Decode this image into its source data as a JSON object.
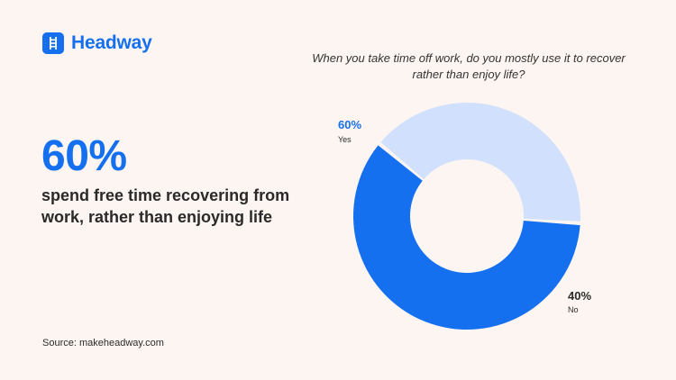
{
  "brand": {
    "name": "Headway",
    "icon": "ladder-icon",
    "color": "#1570EF"
  },
  "headline": {
    "stat": "60%",
    "description": "spend free time recovering from work, rather than enjoying life"
  },
  "source": "Source: makeheadway.com",
  "chart_data": {
    "type": "pie",
    "style": "donut",
    "title": "When you take time off work, do you mostly use it to recover rather than enjoy life?",
    "slices": [
      {
        "name": "Yes",
        "value": 60,
        "label": "60%",
        "color": "#1570EF",
        "label_color": "#1570EF"
      },
      {
        "name": "No",
        "value": 40,
        "label": "40%",
        "color": "#D1E0FC",
        "label_color": "#2A2A2A"
      }
    ],
    "legend": "none"
  }
}
